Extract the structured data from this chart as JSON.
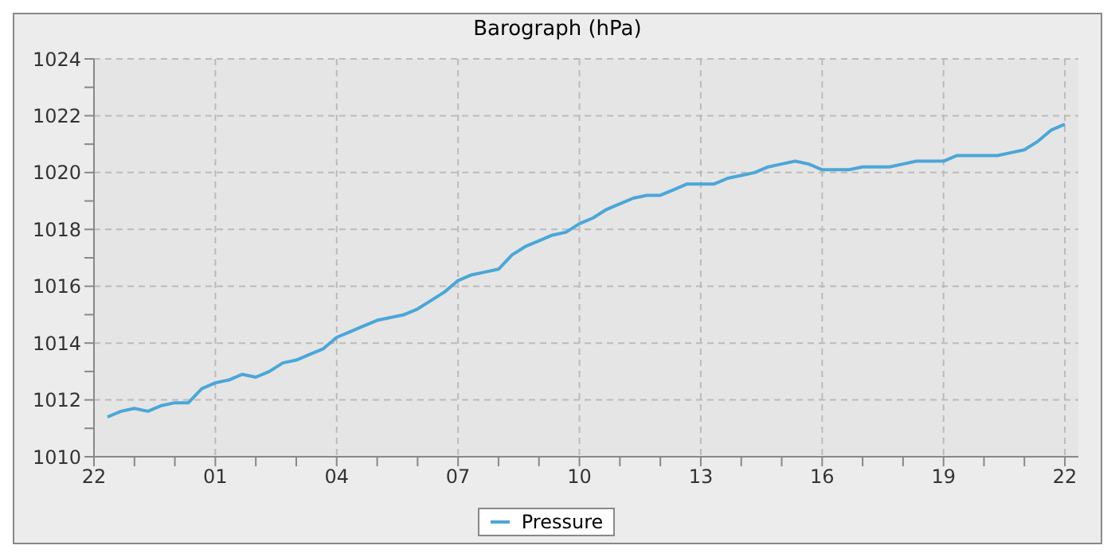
{
  "chart_data": {
    "type": "line",
    "title": "Barograph (hPa)",
    "categories": [
      "22",
      null,
      null,
      null,
      null,
      null,
      null,
      null,
      null,
      "01",
      null,
      null,
      null,
      null,
      null,
      null,
      null,
      null,
      "04",
      null,
      null,
      null,
      null,
      null,
      null,
      null,
      null,
      "07",
      null,
      null,
      null,
      null,
      null,
      null,
      null,
      null,
      "10",
      null,
      null,
      null,
      null,
      null,
      null,
      null,
      null,
      "13",
      null,
      null,
      null,
      null,
      null,
      null,
      null,
      null,
      "16",
      null,
      null,
      null,
      null,
      null,
      null,
      null,
      null,
      "19",
      null,
      null,
      null,
      null,
      null,
      null,
      null,
      null,
      "22",
      null
    ],
    "series": [
      {
        "name": "Pressure",
        "color": "#4ba6d8",
        "values": [
          null,
          1011.4,
          1011.6,
          1011.7,
          1011.6,
          1011.8,
          1011.9,
          1011.9,
          1012.4,
          1012.6,
          1012.7,
          1012.9,
          1012.8,
          1013.0,
          1013.3,
          1013.4,
          1013.6,
          1013.8,
          1014.2,
          1014.4,
          1014.6,
          1014.8,
          1014.9,
          1015.0,
          1015.2,
          1015.5,
          1015.8,
          1016.2,
          1016.4,
          1016.5,
          1016.6,
          1017.1,
          1017.4,
          1017.6,
          1017.8,
          1017.9,
          1018.2,
          1018.4,
          1018.7,
          1018.9,
          1019.1,
          1019.2,
          1019.2,
          1019.4,
          1019.6,
          1019.6,
          1019.6,
          1019.8,
          1019.9,
          1020.0,
          1020.2,
          1020.3,
          1020.4,
          1020.3,
          1020.1,
          1020.1,
          1020.1,
          1020.2,
          1020.2,
          1020.2,
          1020.3,
          1020.4,
          1020.4,
          1020.4,
          1020.6,
          1020.6,
          1020.6,
          1020.6,
          1020.7,
          1020.8,
          1021.1,
          1021.5,
          1021.7,
          null
        ]
      }
    ],
    "ylim": [
      1010,
      1024
    ],
    "yticks": [
      1010,
      {
        "value": 1011,
        "label": null
      },
      1012,
      {
        "value": 1013,
        "label": null
      },
      1014,
      {
        "value": 1015,
        "label": null
      },
      1016,
      {
        "value": 1017,
        "label": null
      },
      1018,
      {
        "value": 1019,
        "label": null
      },
      1020,
      {
        "value": 1021,
        "label": null
      },
      1022,
      {
        "value": 1023,
        "label": null
      },
      1024
    ],
    "grid": true,
    "legend": "bottom",
    "marker": "none",
    "line_style": "solid"
  }
}
